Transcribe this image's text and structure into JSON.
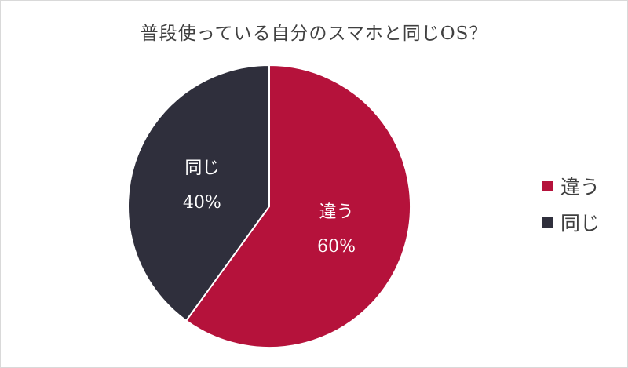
{
  "chart_data": {
    "type": "pie",
    "title": "普段使っている自分のスマホと同じOS？",
    "categories": [
      "違う",
      "同じ"
    ],
    "values": [
      60,
      40
    ],
    "data_labels": [
      "60%",
      "40%"
    ],
    "colors": [
      "#b5123b",
      "#2f2f3c"
    ],
    "legend_position": "right",
    "start_angle": "top, clockwise"
  }
}
